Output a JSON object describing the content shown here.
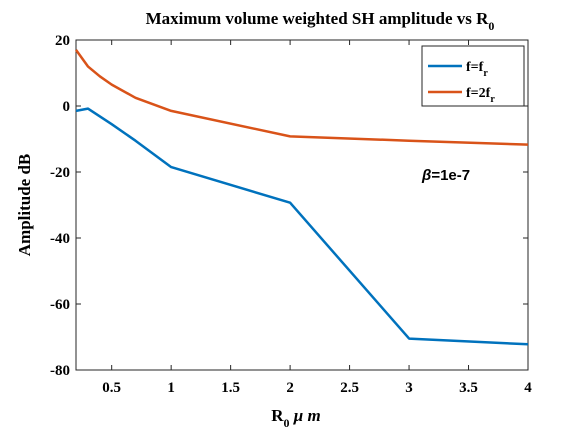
{
  "chart_data": {
    "type": "line",
    "title": {
      "main": "Maximum volume weighted SH amplitude vs R",
      "sub": "0"
    },
    "xlabel": {
      "main": "R",
      "sub": "0",
      "rest": " μ m"
    },
    "ylabel": "Amplitude dB",
    "xlim": [
      0.2,
      4
    ],
    "ylim": [
      -80,
      20
    ],
    "xticks": [
      0.5,
      1,
      1.5,
      2,
      2.5,
      3,
      3.5,
      4
    ],
    "xtick_labels": [
      "0.5",
      "1",
      "1.5",
      "2",
      "2.5",
      "3",
      "3.5",
      "4"
    ],
    "yticks": [
      -80,
      -60,
      -40,
      -20,
      0,
      20
    ],
    "ytick_labels": [
      "-80",
      "-60",
      "-40",
      "-20",
      "0",
      "20"
    ],
    "grid": false,
    "legend_position": "top-right",
    "annotation": {
      "symbol": "β",
      "text": "=1e-7"
    },
    "series": [
      {
        "name": "f=f",
        "name_sub": "r",
        "color": "#0072BD",
        "x": [
          0.2,
          0.3,
          0.5,
          0.7,
          1,
          2,
          3,
          4
        ],
        "y": [
          -1.5,
          -0.8,
          -5.5,
          -10.5,
          -18.5,
          -29.3,
          -70.5,
          -72.2
        ]
      },
      {
        "name": "f=2f",
        "name_sub": "r",
        "color": "#D95319",
        "x": [
          0.2,
          0.3,
          0.4,
          0.5,
          0.7,
          1,
          2,
          3,
          4
        ],
        "y": [
          17,
          12,
          9,
          6.5,
          2.5,
          -1.5,
          -9.2,
          -10.5,
          -11.7
        ]
      }
    ]
  }
}
